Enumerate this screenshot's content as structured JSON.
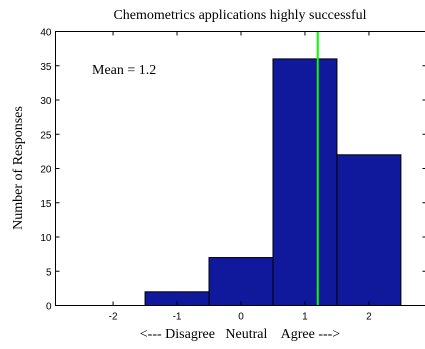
{
  "chart_data": {
    "type": "bar",
    "title": "Chemometrics applications highly successful",
    "xlabel": "<--- Disagree   Neutral    Agree --->",
    "ylabel": "Number of Responses",
    "x": [
      -2,
      -1,
      0,
      1,
      2
    ],
    "values": [
      0,
      2,
      7,
      36,
      22
    ],
    "xlim": [
      -2.9,
      2.9
    ],
    "ylim": [
      0,
      40
    ],
    "xticks": [
      -2,
      -1,
      0,
      1,
      2
    ],
    "yticks": [
      0,
      5,
      10,
      15,
      20,
      25,
      30,
      35,
      40
    ],
    "mean_line": 1.2,
    "annotation": "Mean = 1.2",
    "bar_color": "#10189c",
    "line_color": "#00ff00",
    "grid": false
  }
}
